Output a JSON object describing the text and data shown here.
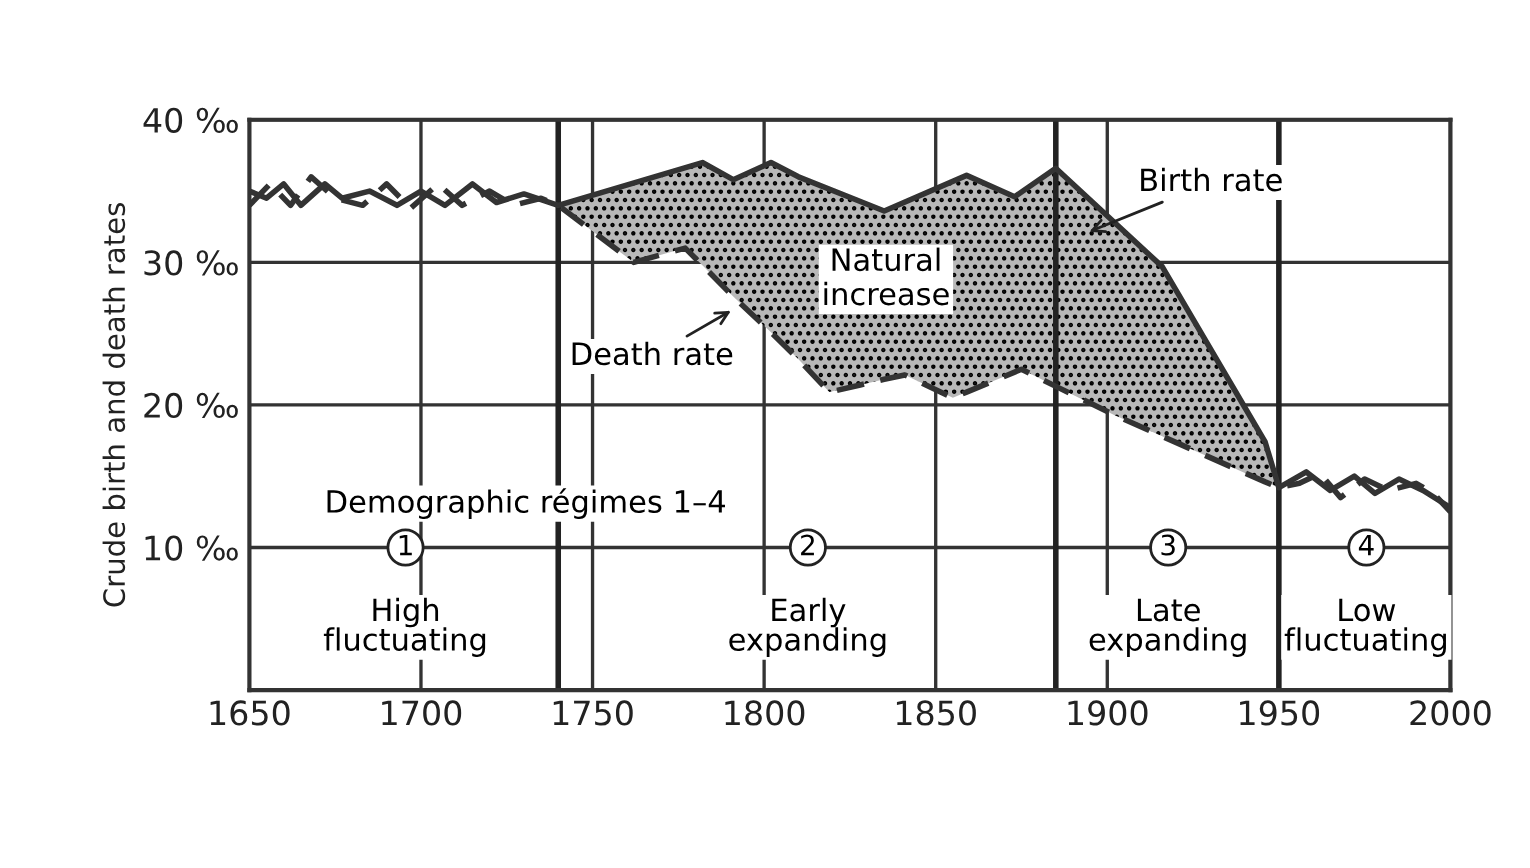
{
  "chart_data": {
    "type": "line",
    "ylabel": "Crude birth and death rates",
    "xlim": [
      1650,
      2000
    ],
    "xticks": [
      1650,
      1700,
      1750,
      1800,
      1850,
      1900,
      1950,
      2000
    ],
    "ylim": [
      0,
      40
    ],
    "yticks": [
      {
        "value": 10,
        "label": "10 ‰"
      },
      {
        "value": 20,
        "label": "20 ‰"
      },
      {
        "value": 30,
        "label": "30 ‰"
      },
      {
        "value": 40,
        "label": "40 ‰"
      }
    ],
    "grid": true,
    "marker": "none",
    "series": [
      {
        "line_style": "solid",
        "color": "#333333",
        "x": [
          1650,
          1655,
          1660,
          1665,
          1672,
          1677,
          1685,
          1693,
          1700,
          1707,
          1715,
          1722,
          1730,
          1740,
          1782,
          1791,
          1802,
          1810,
          1835,
          1859,
          1873,
          1885,
          1916,
          1946,
          1950,
          1958,
          1965,
          1972,
          1978,
          1985,
          1992,
          2000
        ],
        "values": [
          35,
          34.5,
          35.5,
          34,
          35.5,
          34.5,
          35,
          34,
          35,
          34,
          35.5,
          34.2,
          34.8,
          34,
          37,
          35.8,
          37,
          36,
          33.6,
          36.1,
          34.6,
          36.6,
          29.7,
          17.4,
          14.2,
          15.3,
          14,
          15,
          13.8,
          14.8,
          14,
          12.8
        ]
      },
      {
        "line_style": "dashed",
        "color": "#333333",
        "x": [
          1650,
          1656,
          1662,
          1668,
          1675,
          1683,
          1690,
          1697,
          1705,
          1712,
          1720,
          1727,
          1735,
          1740,
          1762,
          1777,
          1782,
          1791,
          1802,
          1810,
          1819,
          1828,
          1835,
          1841,
          1855,
          1859,
          1873,
          1875,
          1885,
          1902,
          1916,
          1946,
          1950,
          1956,
          1962,
          1968,
          1975,
          1982,
          1990,
          1995,
          2000
        ],
        "values": [
          34,
          35.5,
          34,
          36,
          34.5,
          34,
          35.5,
          33.8,
          35.5,
          34,
          35,
          34,
          34.5,
          34,
          30,
          31,
          29.8,
          27.6,
          25.1,
          23.2,
          20.9,
          21.4,
          21.8,
          22.1,
          20.5,
          20.9,
          22.3,
          22.5,
          21.3,
          19.3,
          17.8,
          14.6,
          14.2,
          14.5,
          15.2,
          13.5,
          14.8,
          14,
          14.5,
          13.8,
          12.5
        ],
        "lower": [
          null,
          null,
          null,
          null,
          null,
          null,
          null,
          null,
          null,
          null,
          null,
          null,
          null,
          34,
          30,
          31,
          29.8,
          27.6,
          25.1,
          23.2,
          20.9,
          21.4,
          21.8,
          22.1,
          20.5,
          20.9,
          22.3,
          22.5,
          21.3,
          19.3,
          17.8,
          14.6,
          14.2,
          null,
          null,
          null,
          null,
          null,
          null,
          null,
          null
        ],
        "upper": [
          null,
          null,
          null,
          null,
          null,
          null,
          null,
          null,
          null,
          null,
          null,
          null,
          null,
          34,
          35.6,
          36.6,
          37,
          35.8,
          37,
          36,
          35.1,
          34.3,
          33.6,
          34.2,
          35.7,
          36.1,
          34.6,
          34.9,
          36.6,
          32.8,
          29.7,
          17.4,
          14.2,
          null,
          null,
          null,
          null,
          null,
          null,
          null,
          null
        ]
      }
    ],
    "ref_lines": [
      {
        "axis": "x",
        "value": 1740,
        "color": "#222222"
      },
      {
        "axis": "x",
        "value": 1885,
        "color": "#222222"
      },
      {
        "axis": "x",
        "value": 1950,
        "color": "#222222"
      }
    ],
    "annotations": [
      "Birth rate",
      "Death rate",
      "Natural increase",
      "Demographic régimes 1–4",
      "1",
      "2",
      "3",
      "4",
      "High\nfluctuating",
      "Early\nexpanding",
      "Late\nexpanding",
      "Low\nfluctuating"
    ]
  }
}
